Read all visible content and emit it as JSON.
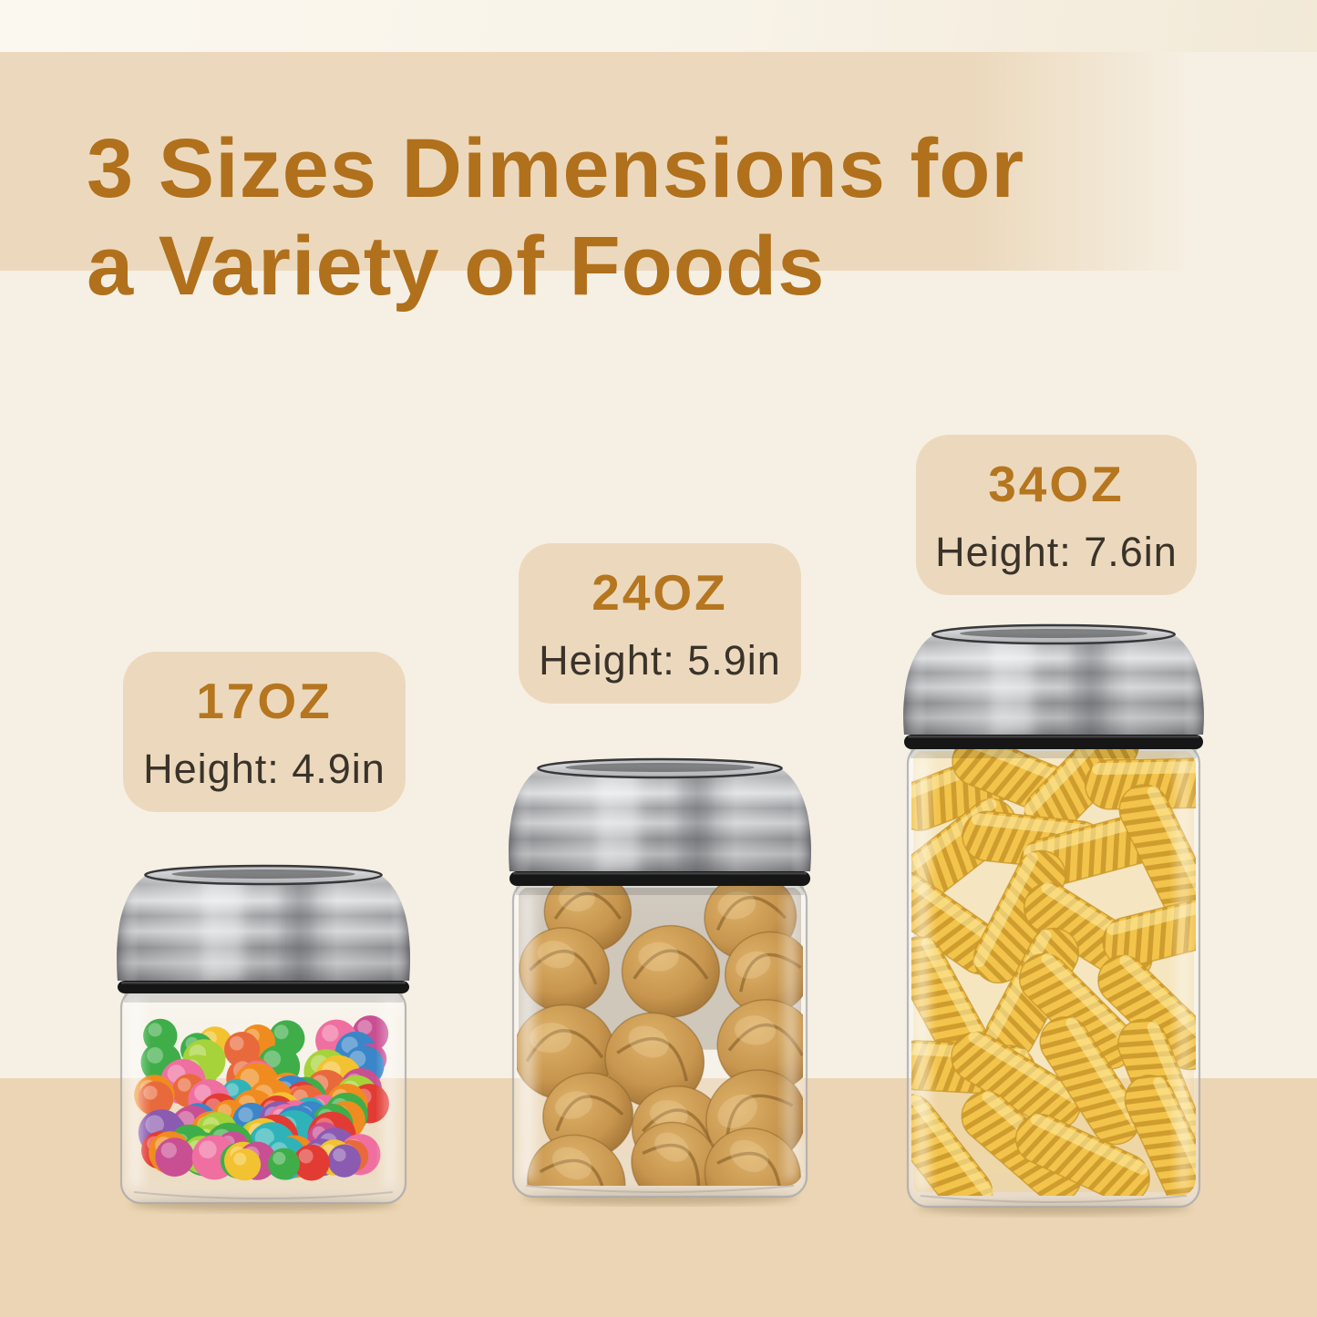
{
  "title": {
    "line1": "3 Sizes Dimensions for",
    "line2": "a Variety of Foods"
  },
  "colors": {
    "title_text": "#b0701c",
    "size_text": "#b5761f",
    "height_text": "#3a332a",
    "banner_beige": "#ecd9bd",
    "bottom_band_beige": "#ebd5b4",
    "background_cream": "#f6f0e4",
    "steel_light": "#d2d3d5",
    "steel_dark": "#77787b",
    "gasket_black": "#161616",
    "glass_edge": "#a9a9a9",
    "candy_palette": [
      "#e23b34",
      "#f08c1f",
      "#f2c230",
      "#a6d33a",
      "#3fae49",
      "#2fb3b8",
      "#3a86c8",
      "#ef6fa0",
      "#c94f93",
      "#8a5bb0",
      "#e86a3c"
    ],
    "walnut_light": "#ddb169",
    "walnut_base": "#c8964e",
    "walnut_dark": "#9e7034",
    "pasta_base": "#f2c44b",
    "pasta_ridge": "#cf9d2e"
  },
  "jars": [
    {
      "id": "small",
      "size_label": "17OZ",
      "height_label": "Height: 4.9in",
      "contents": "gummy candies"
    },
    {
      "id": "medium",
      "size_label": "24OZ",
      "height_label": "Height: 5.9in",
      "contents": "walnuts"
    },
    {
      "id": "large",
      "size_label": "34OZ",
      "height_label": "Height: 7.6in",
      "contents": "fusilli pasta"
    }
  ]
}
